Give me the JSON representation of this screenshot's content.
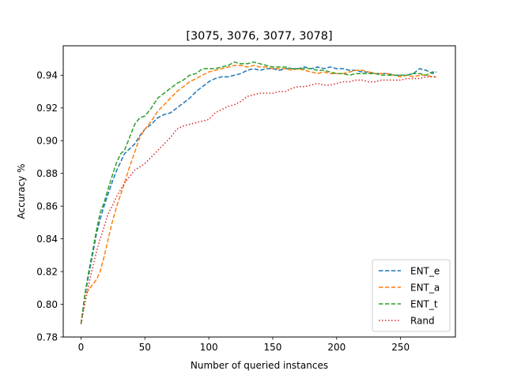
{
  "chart_data": {
    "type": "line",
    "title": "[3075, 3076, 3077, 3078]",
    "xlabel": "Number of queried instances",
    "ylabel": "Accuracy %",
    "xlim": [
      -13.9,
      292.9
    ],
    "ylim": [
      0.78,
      0.958
    ],
    "x_ticks": [
      0,
      50,
      100,
      150,
      200,
      250
    ],
    "y_ticks": [
      0.78,
      0.8,
      0.82,
      0.84,
      0.86,
      0.88,
      0.9,
      0.92,
      0.94
    ],
    "x_tick_labels": [
      "0",
      "50",
      "100",
      "150",
      "200",
      "250"
    ],
    "y_tick_labels": [
      "0.78",
      "0.80",
      "0.82",
      "0.84",
      "0.86",
      "0.88",
      "0.90",
      "0.92",
      "0.94"
    ],
    "grid": false,
    "legend_position": "lower-right",
    "series": [
      {
        "name": "ENT_e",
        "color": "#1f77b4",
        "style": "dashed",
        "points": [
          [
            0,
            0.788
          ],
          [
            3,
            0.805
          ],
          [
            6,
            0.818
          ],
          [
            9,
            0.83
          ],
          [
            12,
            0.843
          ],
          [
            15,
            0.852
          ],
          [
            18,
            0.86
          ],
          [
            21,
            0.867
          ],
          [
            25,
            0.876
          ],
          [
            28,
            0.882
          ],
          [
            31,
            0.887
          ],
          [
            34,
            0.892
          ],
          [
            38,
            0.895
          ],
          [
            42,
            0.898
          ],
          [
            46,
            0.903
          ],
          [
            50,
            0.907
          ],
          [
            55,
            0.91
          ],
          [
            60,
            0.914
          ],
          [
            65,
            0.916
          ],
          [
            70,
            0.917
          ],
          [
            75,
            0.92
          ],
          [
            80,
            0.923
          ],
          [
            85,
            0.926
          ],
          [
            90,
            0.93
          ],
          [
            95,
            0.933
          ],
          [
            100,
            0.936
          ],
          [
            105,
            0.938
          ],
          [
            110,
            0.939
          ],
          [
            115,
            0.939
          ],
          [
            120,
            0.94
          ],
          [
            125,
            0.941
          ],
          [
            130,
            0.943
          ],
          [
            135,
            0.944
          ],
          [
            140,
            0.943
          ],
          [
            145,
            0.944
          ],
          [
            150,
            0.944
          ],
          [
            155,
            0.943
          ],
          [
            160,
            0.944
          ],
          [
            165,
            0.944
          ],
          [
            170,
            0.944
          ],
          [
            175,
            0.945
          ],
          [
            180,
            0.944
          ],
          [
            185,
            0.945
          ],
          [
            190,
            0.944
          ],
          [
            195,
            0.945
          ],
          [
            200,
            0.944
          ],
          [
            205,
            0.944
          ],
          [
            210,
            0.943
          ],
          [
            215,
            0.943
          ],
          [
            220,
            0.942
          ],
          [
            225,
            0.942
          ],
          [
            230,
            0.941
          ],
          [
            235,
            0.941
          ],
          [
            240,
            0.941
          ],
          [
            245,
            0.94
          ],
          [
            250,
            0.94
          ],
          [
            255,
            0.94
          ],
          [
            260,
            0.941
          ],
          [
            265,
            0.944
          ],
          [
            270,
            0.943
          ],
          [
            275,
            0.941
          ],
          [
            278,
            0.942
          ]
        ]
      },
      {
        "name": "ENT_a",
        "color": "#ff7f0e",
        "style": "dashed",
        "points": [
          [
            0,
            0.788
          ],
          [
            3,
            0.805
          ],
          [
            6,
            0.809
          ],
          [
            9,
            0.812
          ],
          [
            12,
            0.815
          ],
          [
            15,
            0.82
          ],
          [
            18,
            0.829
          ],
          [
            21,
            0.839
          ],
          [
            25,
            0.852
          ],
          [
            28,
            0.86
          ],
          [
            31,
            0.867
          ],
          [
            34,
            0.874
          ],
          [
            38,
            0.884
          ],
          [
            42,
            0.893
          ],
          [
            46,
            0.902
          ],
          [
            50,
            0.907
          ],
          [
            55,
            0.912
          ],
          [
            60,
            0.918
          ],
          [
            65,
            0.922
          ],
          [
            70,
            0.926
          ],
          [
            75,
            0.93
          ],
          [
            80,
            0.933
          ],
          [
            85,
            0.936
          ],
          [
            90,
            0.938
          ],
          [
            95,
            0.94
          ],
          [
            100,
            0.942
          ],
          [
            105,
            0.943
          ],
          [
            110,
            0.944
          ],
          [
            115,
            0.945
          ],
          [
            120,
            0.946
          ],
          [
            125,
            0.946
          ],
          [
            130,
            0.945
          ],
          [
            135,
            0.946
          ],
          [
            140,
            0.945
          ],
          [
            145,
            0.945
          ],
          [
            150,
            0.944
          ],
          [
            155,
            0.944
          ],
          [
            160,
            0.944
          ],
          [
            165,
            0.943
          ],
          [
            170,
            0.944
          ],
          [
            175,
            0.943
          ],
          [
            180,
            0.942
          ],
          [
            185,
            0.941
          ],
          [
            190,
            0.942
          ],
          [
            195,
            0.941
          ],
          [
            200,
            0.941
          ],
          [
            205,
            0.941
          ],
          [
            210,
            0.942
          ],
          [
            215,
            0.943
          ],
          [
            220,
            0.943
          ],
          [
            225,
            0.942
          ],
          [
            230,
            0.941
          ],
          [
            235,
            0.941
          ],
          [
            240,
            0.941
          ],
          [
            245,
            0.94
          ],
          [
            250,
            0.939
          ],
          [
            255,
            0.94
          ],
          [
            260,
            0.939
          ],
          [
            265,
            0.94
          ],
          [
            270,
            0.94
          ],
          [
            275,
            0.939
          ],
          [
            278,
            0.939
          ]
        ]
      },
      {
        "name": "ENT_t",
        "color": "#2ca02c",
        "style": "dashed",
        "points": [
          [
            0,
            0.788
          ],
          [
            3,
            0.806
          ],
          [
            6,
            0.82
          ],
          [
            9,
            0.832
          ],
          [
            12,
            0.845
          ],
          [
            15,
            0.856
          ],
          [
            18,
            0.862
          ],
          [
            21,
            0.87
          ],
          [
            25,
            0.88
          ],
          [
            28,
            0.887
          ],
          [
            31,
            0.892
          ],
          [
            34,
            0.894
          ],
          [
            38,
            0.902
          ],
          [
            42,
            0.91
          ],
          [
            46,
            0.914
          ],
          [
            50,
            0.915
          ],
          [
            55,
            0.92
          ],
          [
            60,
            0.926
          ],
          [
            65,
            0.929
          ],
          [
            70,
            0.932
          ],
          [
            75,
            0.935
          ],
          [
            80,
            0.937
          ],
          [
            85,
            0.94
          ],
          [
            90,
            0.941
          ],
          [
            95,
            0.944
          ],
          [
            100,
            0.944
          ],
          [
            105,
            0.944
          ],
          [
            110,
            0.945
          ],
          [
            115,
            0.946
          ],
          [
            120,
            0.948
          ],
          [
            125,
            0.947
          ],
          [
            130,
            0.947
          ],
          [
            135,
            0.948
          ],
          [
            140,
            0.947
          ],
          [
            145,
            0.946
          ],
          [
            150,
            0.945
          ],
          [
            155,
            0.945
          ],
          [
            160,
            0.945
          ],
          [
            165,
            0.944
          ],
          [
            170,
            0.944
          ],
          [
            175,
            0.944
          ],
          [
            180,
            0.944
          ],
          [
            185,
            0.943
          ],
          [
            190,
            0.943
          ],
          [
            195,
            0.942
          ],
          [
            200,
            0.941
          ],
          [
            205,
            0.941
          ],
          [
            210,
            0.94
          ],
          [
            215,
            0.941
          ],
          [
            220,
            0.941
          ],
          [
            225,
            0.941
          ],
          [
            230,
            0.941
          ],
          [
            235,
            0.94
          ],
          [
            240,
            0.94
          ],
          [
            245,
            0.94
          ],
          [
            250,
            0.94
          ],
          [
            255,
            0.94
          ],
          [
            260,
            0.941
          ],
          [
            265,
            0.941
          ],
          [
            270,
            0.94
          ],
          [
            275,
            0.942
          ],
          [
            278,
            0.942
          ]
        ]
      },
      {
        "name": "Rand",
        "color": "#d62728",
        "style": "dotted",
        "points": [
          [
            0,
            0.788
          ],
          [
            3,
            0.8
          ],
          [
            6,
            0.812
          ],
          [
            9,
            0.822
          ],
          [
            12,
            0.832
          ],
          [
            15,
            0.84
          ],
          [
            18,
            0.847
          ],
          [
            21,
            0.855
          ],
          [
            25,
            0.861
          ],
          [
            28,
            0.866
          ],
          [
            31,
            0.87
          ],
          [
            34,
            0.874
          ],
          [
            38,
            0.878
          ],
          [
            42,
            0.882
          ],
          [
            46,
            0.884
          ],
          [
            50,
            0.886
          ],
          [
            55,
            0.89
          ],
          [
            60,
            0.894
          ],
          [
            65,
            0.898
          ],
          [
            70,
            0.902
          ],
          [
            75,
            0.907
          ],
          [
            80,
            0.909
          ],
          [
            85,
            0.91
          ],
          [
            90,
            0.911
          ],
          [
            95,
            0.912
          ],
          [
            100,
            0.913
          ],
          [
            105,
            0.917
          ],
          [
            110,
            0.919
          ],
          [
            115,
            0.921
          ],
          [
            120,
            0.922
          ],
          [
            125,
            0.924
          ],
          [
            130,
            0.927
          ],
          [
            135,
            0.928
          ],
          [
            140,
            0.929
          ],
          [
            145,
            0.929
          ],
          [
            150,
            0.929
          ],
          [
            155,
            0.93
          ],
          [
            160,
            0.93
          ],
          [
            165,
            0.932
          ],
          [
            170,
            0.933
          ],
          [
            175,
            0.933
          ],
          [
            180,
            0.934
          ],
          [
            185,
            0.935
          ],
          [
            190,
            0.934
          ],
          [
            195,
            0.934
          ],
          [
            200,
            0.935
          ],
          [
            205,
            0.936
          ],
          [
            210,
            0.936
          ],
          [
            215,
            0.937
          ],
          [
            220,
            0.937
          ],
          [
            225,
            0.936
          ],
          [
            230,
            0.936
          ],
          [
            235,
            0.937
          ],
          [
            240,
            0.937
          ],
          [
            245,
            0.937
          ],
          [
            250,
            0.937
          ],
          [
            255,
            0.938
          ],
          [
            260,
            0.938
          ],
          [
            265,
            0.938
          ],
          [
            270,
            0.939
          ],
          [
            275,
            0.939
          ],
          [
            278,
            0.939
          ]
        ]
      }
    ]
  }
}
